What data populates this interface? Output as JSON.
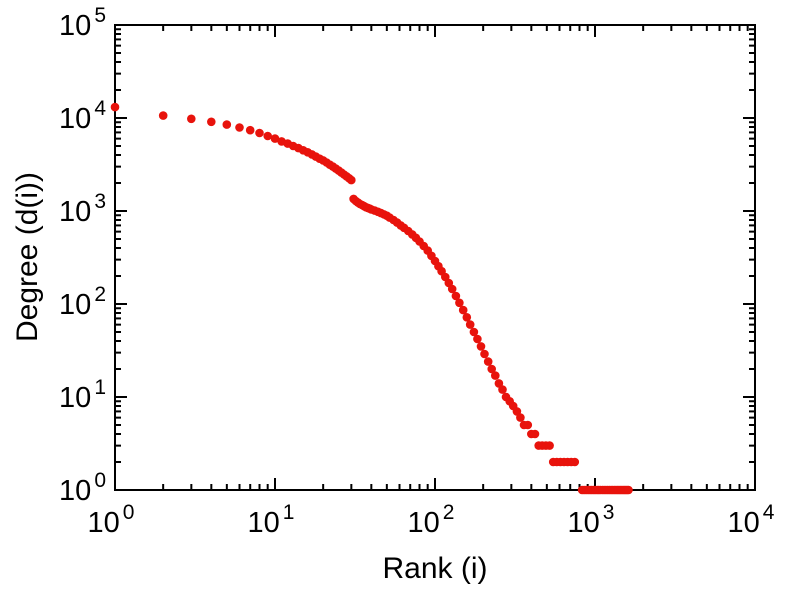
{
  "chart_data": {
    "type": "scatter",
    "title": "",
    "xlabel": "Rank (i)",
    "ylabel": "Degree (d(i))",
    "x_scale": "log",
    "y_scale": "log",
    "xlim": [
      1,
      10000
    ],
    "ylim": [
      1,
      100000
    ],
    "tick_base": "10",
    "x_tick_exponents": [
      0,
      1,
      2,
      3,
      4
    ],
    "y_tick_exponents": [
      0,
      1,
      2,
      3,
      4,
      5
    ],
    "grid": false,
    "legend": "none",
    "point_color": "#e8130c",
    "frame_color": "#000000",
    "background_color": "#ffffff",
    "points": [
      [
        1,
        13100
      ],
      [
        2,
        10600
      ],
      [
        3,
        9800
      ],
      [
        4,
        9100
      ],
      [
        5,
        8500
      ],
      [
        6,
        7900
      ],
      [
        7,
        7400
      ],
      [
        8,
        6900
      ],
      [
        9,
        6400
      ],
      [
        10,
        6000
      ],
      [
        11,
        5600
      ],
      [
        12,
        5300
      ],
      [
        13,
        5000
      ],
      [
        14,
        4750
      ],
      [
        15,
        4500
      ],
      [
        16,
        4280
      ],
      [
        17,
        4060
      ],
      [
        18,
        3850
      ],
      [
        19,
        3650
      ],
      [
        20,
        3500
      ],
      [
        21,
        3320
      ],
      [
        22,
        3150
      ],
      [
        23,
        3000
      ],
      [
        24,
        2860
      ],
      [
        25,
        2720
      ],
      [
        26,
        2590
      ],
      [
        27,
        2470
      ],
      [
        28,
        2360
      ],
      [
        29,
        2250
      ],
      [
        30,
        2150
      ],
      [
        31,
        1350
      ],
      [
        32,
        1280
      ],
      [
        33,
        1230
      ],
      [
        34,
        1190
      ],
      [
        35,
        1160
      ],
      [
        36,
        1130
      ],
      [
        37,
        1100
      ],
      [
        38,
        1080
      ],
      [
        39,
        1060
      ],
      [
        40,
        1040
      ],
      [
        42,
        1010
      ],
      [
        44,
        980
      ],
      [
        46,
        950
      ],
      [
        48,
        920
      ],
      [
        50,
        890
      ],
      [
        52,
        850
      ],
      [
        55,
        800
      ],
      [
        58,
        750
      ],
      [
        61,
        700
      ],
      [
        64,
        660
      ],
      [
        68,
        610
      ],
      [
        72,
        560
      ],
      [
        76,
        515
      ],
      [
        80,
        470
      ],
      [
        85,
        420
      ],
      [
        90,
        375
      ],
      [
        95,
        330
      ],
      [
        100,
        290
      ],
      [
        105,
        255
      ],
      [
        110,
        225
      ],
      [
        116,
        195
      ],
      [
        122,
        168
      ],
      [
        128,
        145
      ],
      [
        135,
        122
      ],
      [
        142,
        103
      ],
      [
        150,
        86
      ],
      [
        158,
        72
      ],
      [
        166,
        60
      ],
      [
        175,
        50
      ],
      [
        184,
        42
      ],
      [
        194,
        35
      ],
      [
        204,
        29
      ],
      [
        215,
        24
      ],
      [
        226,
        20
      ],
      [
        238,
        17
      ],
      [
        251,
        14
      ],
      [
        264,
        12
      ],
      [
        278,
        10
      ],
      [
        293,
        9
      ],
      [
        308,
        8
      ],
      [
        325,
        7
      ],
      [
        342,
        6
      ],
      [
        360,
        5
      ],
      [
        380,
        5
      ],
      [
        400,
        4
      ],
      [
        422,
        4
      ],
      [
        445,
        3
      ],
      [
        468,
        3
      ],
      [
        493,
        3
      ],
      [
        520,
        3
      ],
      [
        548,
        2
      ],
      [
        577,
        2
      ],
      [
        608,
        2
      ],
      [
        640,
        2
      ],
      [
        674,
        2
      ],
      [
        710,
        2
      ],
      [
        748,
        2
      ],
      [
        830,
        1
      ],
      [
        855,
        1
      ],
      [
        880,
        1
      ],
      [
        905,
        1
      ],
      [
        930,
        1
      ],
      [
        955,
        1
      ],
      [
        980,
        1
      ],
      [
        1005,
        1
      ],
      [
        1030,
        1
      ],
      [
        1055,
        1
      ],
      [
        1080,
        1
      ],
      [
        1110,
        1
      ],
      [
        1140,
        1
      ],
      [
        1170,
        1
      ],
      [
        1200,
        1
      ],
      [
        1230,
        1
      ],
      [
        1260,
        1
      ],
      [
        1290,
        1
      ],
      [
        1320,
        1
      ],
      [
        1350,
        1
      ],
      [
        1380,
        1
      ],
      [
        1410,
        1
      ],
      [
        1440,
        1
      ],
      [
        1470,
        1
      ],
      [
        1500,
        1
      ],
      [
        1530,
        1
      ],
      [
        1560,
        1
      ],
      [
        1590,
        1
      ],
      [
        1620,
        1
      ]
    ]
  }
}
